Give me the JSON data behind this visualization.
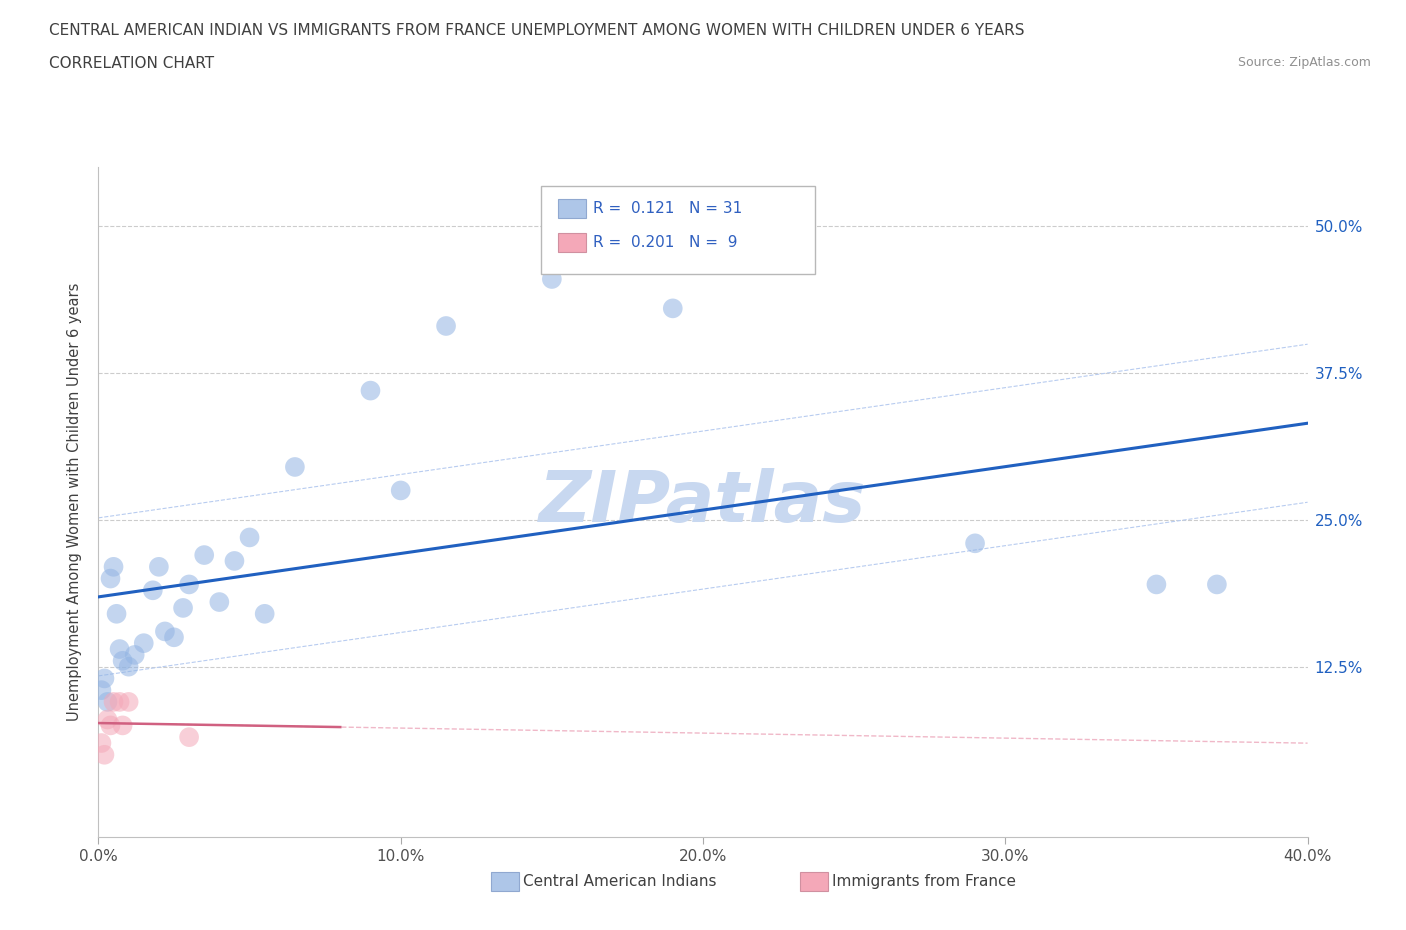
{
  "title_line1": "CENTRAL AMERICAN INDIAN VS IMMIGRANTS FROM FRANCE UNEMPLOYMENT AMONG WOMEN WITH CHILDREN UNDER 6 YEARS",
  "title_line2": "CORRELATION CHART",
  "source_text": "Source: ZipAtlas.com",
  "ylabel": "Unemployment Among Women with Children Under 6 years",
  "xlim": [
    0.0,
    0.4
  ],
  "ylim": [
    -0.02,
    0.55
  ],
  "yticks": [
    0.0,
    0.125,
    0.25,
    0.375,
    0.5
  ],
  "xticks": [
    0.0,
    0.1,
    0.2,
    0.3,
    0.4
  ],
  "xtick_labels": [
    "0.0%",
    "10.0%",
    "20.0%",
    "30.0%",
    "40.0%"
  ],
  "blue_x": [
    0.001,
    0.002,
    0.003,
    0.004,
    0.005,
    0.006,
    0.007,
    0.008,
    0.01,
    0.012,
    0.015,
    0.018,
    0.02,
    0.022,
    0.025,
    0.028,
    0.03,
    0.035,
    0.04,
    0.045,
    0.05,
    0.055,
    0.065,
    0.09,
    0.1,
    0.115,
    0.15,
    0.19,
    0.29,
    0.35,
    0.37
  ],
  "blue_y": [
    0.105,
    0.115,
    0.095,
    0.2,
    0.21,
    0.17,
    0.14,
    0.13,
    0.125,
    0.135,
    0.145,
    0.19,
    0.21,
    0.155,
    0.15,
    0.175,
    0.195,
    0.22,
    0.18,
    0.215,
    0.235,
    0.17,
    0.295,
    0.36,
    0.275,
    0.415,
    0.455,
    0.43,
    0.23,
    0.195,
    0.195
  ],
  "pink_x": [
    0.001,
    0.002,
    0.003,
    0.004,
    0.005,
    0.007,
    0.008,
    0.01,
    0.03
  ],
  "pink_y": [
    0.06,
    0.05,
    0.08,
    0.075,
    0.095,
    0.095,
    0.075,
    0.095,
    0.065
  ],
  "blue_R": 0.121,
  "blue_N": 31,
  "pink_R": 0.201,
  "pink_N": 9,
  "blue_color": "#92B4E3",
  "blue_line_color": "#2060C0",
  "pink_color": "#F4A8B8",
  "pink_line_color": "#D06080",
  "blue_dash_color": "#B8CCF0",
  "pink_dash_color": "#F0B8C8",
  "legend_box_blue": "#AEC6E8",
  "legend_box_pink": "#F4A8B8",
  "legend_text_color": "#3060C0",
  "watermark_color": "#C8D8F0",
  "grid_color": "#CCCCCC",
  "title_color": "#404040",
  "source_color": "#909090",
  "marker_size": 200,
  "alpha": 0.55
}
